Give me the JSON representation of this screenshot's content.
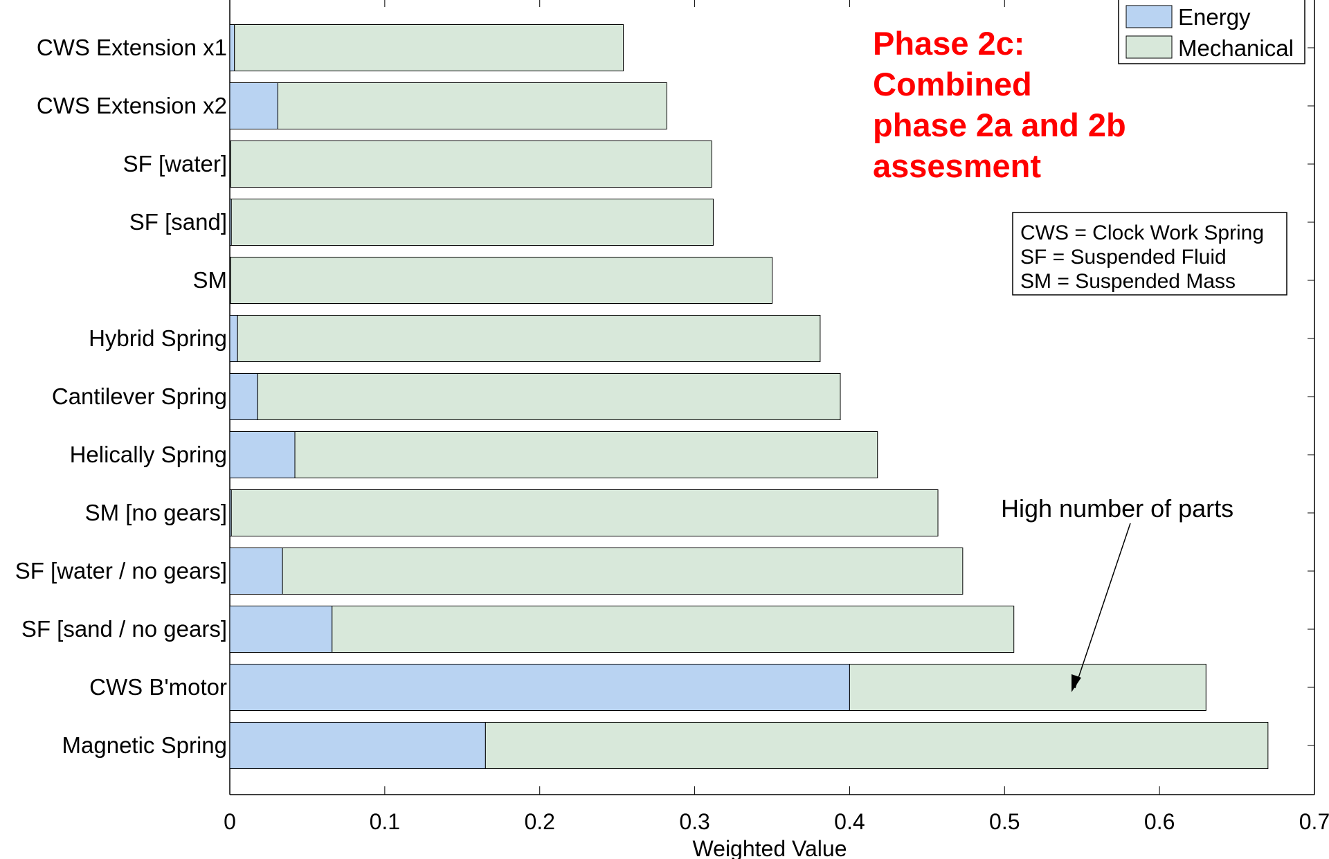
{
  "chart_data": {
    "type": "bar",
    "orientation": "horizontal",
    "stacked": true,
    "categories": [
      "Magnetic Spring",
      "CWS B'motor",
      "SF [sand / no gears]",
      "SF [water / no gears]",
      "SM [no gears]",
      "Helically Spring",
      "Cantilever Spring",
      "Hybrid Spring",
      "SM",
      "SF [sand]",
      "SF [water]",
      "CWS Extension x2",
      "CWS Extension x1"
    ],
    "series": [
      {
        "name": "Energy",
        "color": "#b9d3f2",
        "values": [
          0.165,
          0.4,
          0.066,
          0.034,
          0.001,
          0.042,
          0.018,
          0.005,
          0.0005,
          0.001,
          0.0005,
          0.031,
          0.003
        ]
      },
      {
        "name": "Mechanical",
        "color": "#d8e8da",
        "values": [
          0.505,
          0.23,
          0.44,
          0.439,
          0.456,
          0.376,
          0.376,
          0.376,
          0.3495,
          0.311,
          0.3105,
          0.251,
          0.251
        ]
      }
    ],
    "xlabel": "Weighted Value",
    "xlim": [
      0,
      0.7
    ],
    "xticks": [
      "0",
      "0.1",
      "0.2",
      "0.3",
      "0.4",
      "0.5",
      "0.6",
      "0.7"
    ],
    "grid": false,
    "legend": {
      "position": "top-right",
      "entries": [
        "Energy",
        "Mechanical"
      ]
    },
    "annotations": {
      "phase_title": [
        "Phase 2c:",
        "Combined",
        "phase 2a and 2b",
        "assesment"
      ],
      "abbreviations": [
        "CWS = Clock Work Spring",
        "SF = Suspended Fluid",
        "SM =  Suspended Mass"
      ],
      "arrow_note": "High number of parts"
    }
  }
}
